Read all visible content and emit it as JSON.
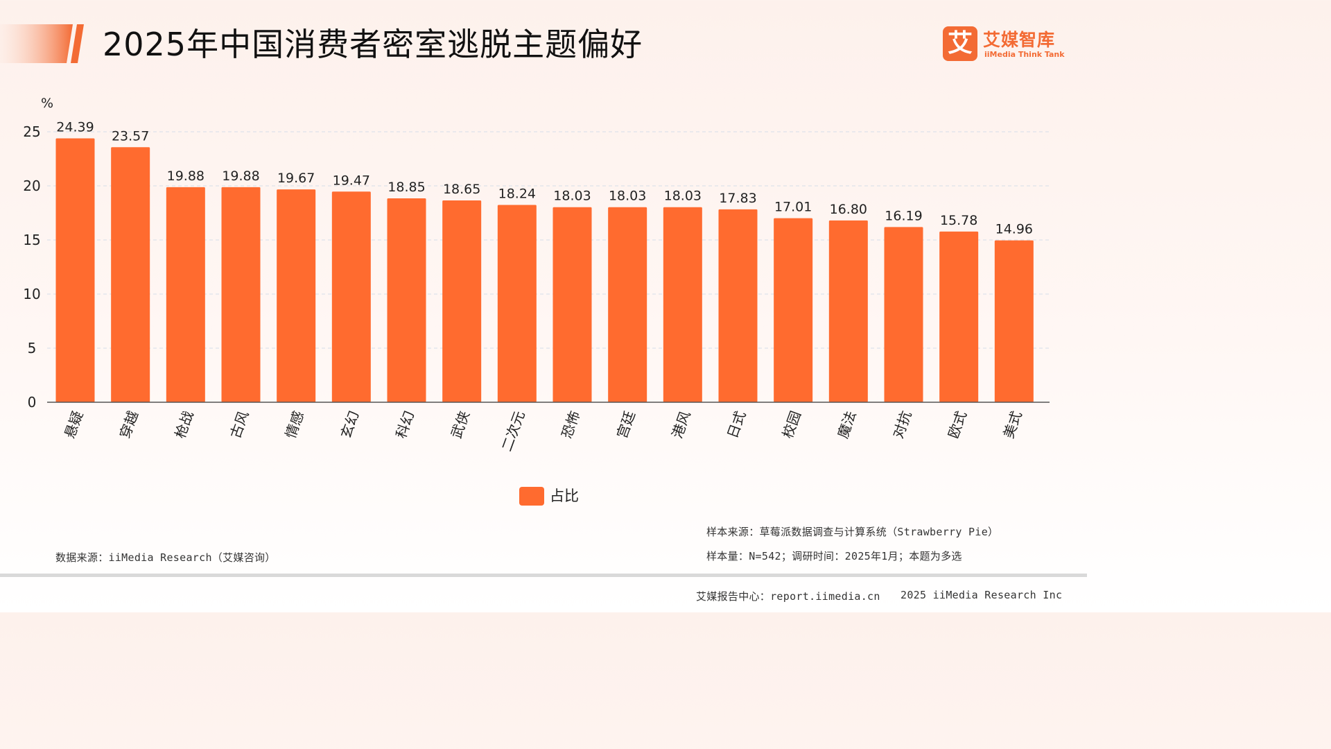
{
  "header": {
    "title": "2025年中国消费者密室逃脱主题偏好",
    "accent_color": "#f36b34"
  },
  "brand": {
    "mark": "艾",
    "name": "艾媒智库",
    "tagline": "iiMedia Think Tank"
  },
  "chart_data": {
    "type": "bar",
    "title": "",
    "xlabel": "",
    "ylabel": "",
    "unit": "%",
    "ylim": [
      0,
      25
    ],
    "yticks": [
      0,
      5,
      10,
      15,
      20,
      25
    ],
    "grid": true,
    "legend_position": "bottom",
    "bar_color": "#ff6b2f",
    "categories": [
      "悬疑",
      "穿越",
      "枪战",
      "古风",
      "情感",
      "玄幻",
      "科幻",
      "武侠",
      "二次元",
      "恐怖",
      "宫廷",
      "港风",
      "日式",
      "校园",
      "魔法",
      "对抗",
      "欧式",
      "美式"
    ],
    "series": [
      {
        "name": "占比",
        "values": [
          24.39,
          23.57,
          19.88,
          19.88,
          19.67,
          19.47,
          18.85,
          18.65,
          18.24,
          18.03,
          18.03,
          18.03,
          17.83,
          17.01,
          16.8,
          16.19,
          15.78,
          14.96
        ],
        "labels": [
          "24.39",
          "23.57",
          "19.88",
          "19.88",
          "19.67",
          "19.47",
          "18.85",
          "18.65",
          "18.24",
          "18.03",
          "18.03",
          "18.03",
          "17.83",
          "17.01",
          "16.80",
          "16.19",
          "15.78",
          "14.96"
        ]
      }
    ]
  },
  "notes": {
    "data_source": "数据来源：iiMedia Research（艾媒咨询）",
    "sample_source": "样本来源：草莓派数据调查与计算系统（Strawberry Pie）",
    "sample_size": "样本量：N=542；调研时间：2025年1月；本题为多选"
  },
  "footer": {
    "report_center": "艾媒报告中心：report.iimedia.cn",
    "copyright": "2025 iiMedia Research Inc"
  }
}
